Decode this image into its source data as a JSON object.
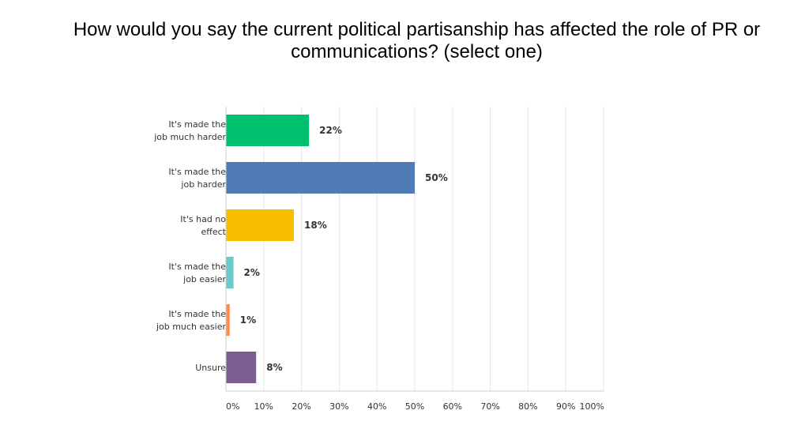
{
  "chart_data": {
    "type": "bar",
    "orientation": "horizontal",
    "title_lines": [
      "How would you say the current political partisanship has affected the role of PR or",
      "communications? (select one)"
    ],
    "categories": [
      [
        "It's made the",
        "job much harder"
      ],
      [
        "It's made the",
        "job harder"
      ],
      [
        "It's had no",
        "effect"
      ],
      [
        "It's made the",
        "job easier"
      ],
      [
        "It's made the",
        "job much easier"
      ],
      [
        "Unsure"
      ]
    ],
    "values": [
      22,
      50,
      18,
      2,
      1,
      8
    ],
    "value_labels": [
      "22%",
      "50%",
      "18%",
      "2%",
      "1%",
      "8%"
    ],
    "colors": [
      "#00bf6f",
      "#507cb6",
      "#f9be00",
      "#6bc8cd",
      "#ff8b4f",
      "#7d5e90"
    ],
    "xlim": [
      0,
      100
    ],
    "xticks": [
      "0%",
      "10%",
      "20%",
      "30%",
      "40%",
      "50%",
      "60%",
      "70%",
      "80%",
      "90%",
      "100%"
    ],
    "grid": true,
    "xlabel": "",
    "ylabel": ""
  }
}
